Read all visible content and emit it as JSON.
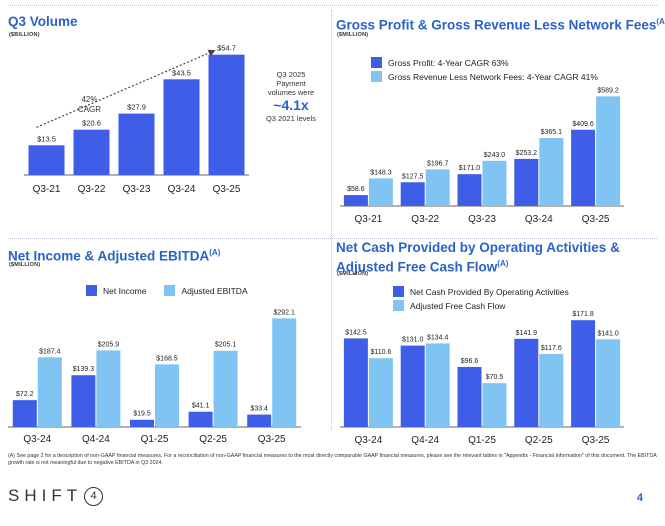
{
  "page_number": "4",
  "logo": {
    "text": "SHIFT",
    "circle": "4"
  },
  "footnote": "(A) See page 2 for a description of non-GAAP financial measures. For a reconciliation of non-GAAP financial measures to the most directly comparable GAAP financial measures, please see the relevant tables in \"Appendix - Financial Information\" of this document. The EBITDA growth rate is not meaningful due to negative EBITDA in Q3 2024.",
  "colors": {
    "dark_blue": "#3e5ee8",
    "light_blue": "#7fc4f3",
    "accent": "#2a62c9"
  },
  "panels": {
    "volume": {
      "title": "Q3 Volume",
      "unit": "($BILLION)",
      "callout": {
        "line1": "Q3 2025",
        "line2": "Payment",
        "line3": "volumes were",
        "big": "~4.1x",
        "line4": "Q3 2021 levels"
      }
    },
    "gross": {
      "title": "Gross Profit & Gross Revenue Less Network Fees",
      "title_sup": "(A)",
      "unit": "($MILLION)",
      "legend": [
        "Gross Profit: 4-Year CAGR 63%",
        "Gross Revenue Less Network Fees: 4-Year CAGR 41%"
      ]
    },
    "income": {
      "title": "Net Income & Adjusted EBITDA",
      "title_sup": "(A)",
      "unit": "($MILLION)",
      "legend": [
        "Net Income",
        "Adjusted EBITDA"
      ]
    },
    "cash": {
      "title_line1": "Net Cash Provided by Operating Activities &",
      "title_line2": "Adjusted Free Cash Flow",
      "title_sup": "(A)",
      "unit": "($MILLION)",
      "legend": [
        "Net Cash Provided By Operating Activities",
        "Adjusted Free Cash Flow"
      ]
    }
  },
  "chart_data": [
    {
      "id": "volume",
      "type": "bar",
      "title": "Q3 Volume",
      "categories": [
        "Q3-21",
        "Q3-22",
        "Q3-23",
        "Q3-24",
        "Q3-25"
      ],
      "series": [
        {
          "name": "Volume",
          "values": [
            13.5,
            20.6,
            27.9,
            43.5,
            54.7
          ],
          "labels": [
            "$13.5",
            "$20.6",
            "$27.9",
            "$43.5",
            "$54.7"
          ]
        }
      ],
      "ylim": [
        0,
        60
      ],
      "annotation": {
        "text_line1": "42%",
        "text_line2": "CAGR"
      }
    },
    {
      "id": "gross",
      "type": "bar",
      "title": "Gross Profit & Gross Revenue Less Network Fees",
      "categories": [
        "Q3-21",
        "Q3-22",
        "Q3-23",
        "Q3-24",
        "Q3-25"
      ],
      "series": [
        {
          "name": "Gross Profit: 4-Year CAGR 63%",
          "values": [
            58.6,
            127.5,
            171.0,
            253.2,
            409.6
          ],
          "labels": [
            "$58.6",
            "$127.5",
            "$171.0",
            "$253.2",
            "$409.6"
          ]
        },
        {
          "name": "Gross Revenue Less Network Fees: 4-Year CAGR 41%",
          "values": [
            148.3,
            196.7,
            243.0,
            365.1,
            589.2
          ],
          "labels": [
            "$148.3",
            "$196.7",
            "$243.0",
            "$365.1",
            "$589.2"
          ]
        }
      ],
      "ylim": [
        0,
        650
      ]
    },
    {
      "id": "income",
      "type": "bar",
      "title": "Net Income & Adjusted EBITDA",
      "categories": [
        "Q3-24",
        "Q4-24",
        "Q1-25",
        "Q2-25",
        "Q3-25"
      ],
      "series": [
        {
          "name": "Net Income",
          "values": [
            72.2,
            139.3,
            19.5,
            41.1,
            33.4
          ],
          "labels": [
            "$72.2",
            "$139.3",
            "$19.5",
            "$41.1",
            "$33.4"
          ]
        },
        {
          "name": "Adjusted EBITDA",
          "values": [
            187.4,
            205.9,
            168.5,
            205.1,
            292.1
          ],
          "labels": [
            "$187.4",
            "$205.9",
            "$168.5",
            "$205.1",
            "$292.1"
          ]
        }
      ],
      "ylim": [
        0,
        320
      ]
    },
    {
      "id": "cash",
      "type": "bar",
      "title": "Net Cash Provided by Operating Activities & Adjusted Free Cash Flow",
      "categories": [
        "Q3-24",
        "Q4-24",
        "Q1-25",
        "Q2-25",
        "Q3-25"
      ],
      "series": [
        {
          "name": "Net Cash Provided By Operating Activities",
          "values": [
            142.5,
            131.0,
            96.6,
            141.9,
            171.8
          ],
          "labels": [
            "$142.5",
            "$131.0",
            "$96.6",
            "$141.9",
            "$171.8"
          ]
        },
        {
          "name": "Adjusted Free Cash Flow",
          "values": [
            110.6,
            134.4,
            70.5,
            117.6,
            141.0
          ],
          "labels": [
            "$110.6",
            "$134.4",
            "$70.5",
            "$117.6",
            "$141.0"
          ]
        }
      ],
      "ylim": [
        0,
        185
      ]
    }
  ]
}
